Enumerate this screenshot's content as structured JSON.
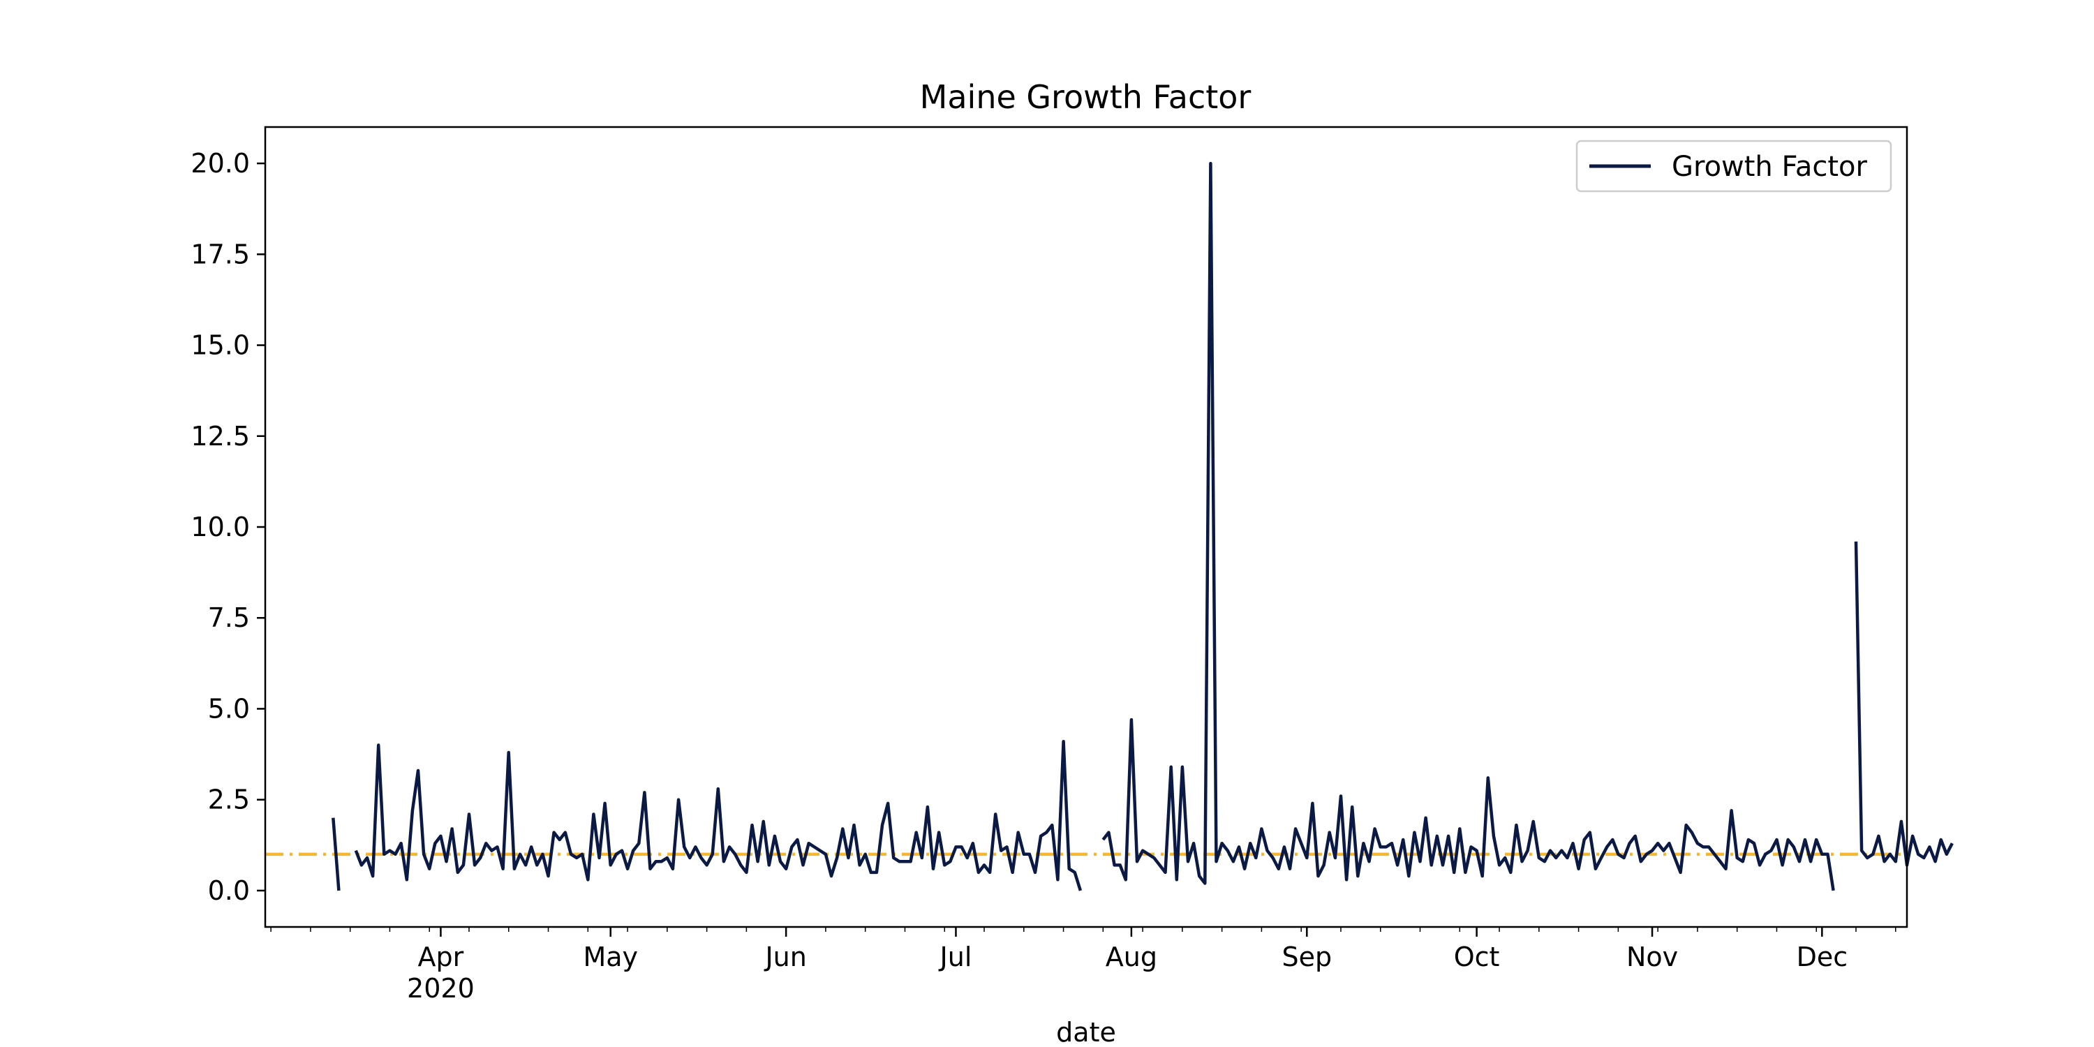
{
  "chart_data": {
    "type": "line",
    "title": "Maine Growth Factor",
    "xlabel": "date",
    "ylabel": "",
    "x_start": "2020-03-13",
    "x_range": [
      "2020-03-01",
      "2020-12-16"
    ],
    "ylim": [
      -1.0,
      21.0
    ],
    "y_ticks": [
      0.0,
      2.5,
      5.0,
      7.5,
      10.0,
      12.5,
      15.0,
      17.5,
      20.0
    ],
    "y_tick_labels": [
      "0.0",
      "2.5",
      "5.0",
      "7.5",
      "10.0",
      "12.5",
      "15.0",
      "17.5",
      "20.0"
    ],
    "x_ticks": [
      {
        "date": "2020-04-01",
        "label": "Apr",
        "sublabel": "2020"
      },
      {
        "date": "2020-05-01",
        "label": "May",
        "sublabel": ""
      },
      {
        "date": "2020-06-01",
        "label": "Jun",
        "sublabel": ""
      },
      {
        "date": "2020-07-01",
        "label": "Jul",
        "sublabel": ""
      },
      {
        "date": "2020-08-01",
        "label": "Aug",
        "sublabel": ""
      },
      {
        "date": "2020-09-01",
        "label": "Sep",
        "sublabel": ""
      },
      {
        "date": "2020-10-01",
        "label": "Oct",
        "sublabel": ""
      },
      {
        "date": "2020-11-01",
        "label": "Nov",
        "sublabel": ""
      },
      {
        "date": "2020-12-01",
        "label": "Dec",
        "sublabel": ""
      }
    ],
    "grid": false,
    "legend_position": "top-right",
    "reference_line": {
      "y": 1.0,
      "color": "#f5b731",
      "style": "dash-dot"
    },
    "series": [
      {
        "name": "Growth Factor",
        "color": "#0b1a45",
        "values": [
          2.0,
          0.0,
          null,
          null,
          1.1,
          0.7,
          0.9,
          0.4,
          4.0,
          1.0,
          1.1,
          1.0,
          1.3,
          0.3,
          2.2,
          3.3,
          1.0,
          0.6,
          1.3,
          1.5,
          0.8,
          1.7,
          0.5,
          0.7,
          2.1,
          0.7,
          0.9,
          1.3,
          1.1,
          1.2,
          0.6,
          3.8,
          0.6,
          1.0,
          0.7,
          1.2,
          0.7,
          1.0,
          0.4,
          1.6,
          1.4,
          1.6,
          1.0,
          0.9,
          1.0,
          0.3,
          2.1,
          0.9,
          2.4,
          0.7,
          1.0,
          1.1,
          0.6,
          1.1,
          1.3,
          2.7,
          0.6,
          0.8,
          0.8,
          0.9,
          0.6,
          2.5,
          1.2,
          0.9,
          1.2,
          0.9,
          0.7,
          1.0,
          2.8,
          0.8,
          1.2,
          1.0,
          0.7,
          0.5,
          1.8,
          0.8,
          1.9,
          0.7,
          1.5,
          0.8,
          0.6,
          1.2,
          1.4,
          0.7,
          1.3,
          1.2,
          1.1,
          1.0,
          0.4,
          0.9,
          1.7,
          0.9,
          1.8,
          0.7,
          1.0,
          0.5,
          0.5,
          1.8,
          2.4,
          0.9,
          0.8,
          0.8,
          0.8,
          1.6,
          0.9,
          2.3,
          0.6,
          1.6,
          0.7,
          0.8,
          1.2,
          1.2,
          0.9,
          1.3,
          0.5,
          0.7,
          0.5,
          2.1,
          1.1,
          1.2,
          0.5,
          1.6,
          1.0,
          1.0,
          0.5,
          1.5,
          1.6,
          1.8,
          0.3,
          4.1,
          0.6,
          0.5,
          0.0,
          null,
          null,
          null,
          1.4,
          1.6,
          0.7,
          0.7,
          0.3,
          4.7,
          0.8,
          1.1,
          1.0,
          0.9,
          0.7,
          0.5,
          3.4,
          0.3,
          3.4,
          0.8,
          1.3,
          0.4,
          0.2,
          20.0,
          0.8,
          1.3,
          1.1,
          0.8,
          1.2,
          0.6,
          1.3,
          0.9,
          1.7,
          1.1,
          0.9,
          0.6,
          1.2,
          0.6,
          1.7,
          1.3,
          0.9,
          2.4,
          0.4,
          0.7,
          1.6,
          0.9,
          2.6,
          0.3,
          2.3,
          0.4,
          1.3,
          0.8,
          1.7,
          1.2,
          1.2,
          1.3,
          0.7,
          1.4,
          0.4,
          1.6,
          0.8,
          2.0,
          0.7,
          1.5,
          0.7,
          1.5,
          0.5,
          1.7,
          0.5,
          1.2,
          1.1,
          0.4,
          3.1,
          1.5,
          0.7,
          0.9,
          0.5,
          1.8,
          0.8,
          1.1,
          1.9,
          0.9,
          0.8,
          1.1,
          0.9,
          1.1,
          0.9,
          1.3,
          0.6,
          1.4,
          1.6,
          0.6,
          0.9,
          1.2,
          1.4,
          1.0,
          0.9,
          1.3,
          1.5,
          0.8,
          1.0,
          1.1,
          1.3,
          1.1,
          1.3,
          0.9,
          0.5,
          1.8,
          1.6,
          1.3,
          1.2,
          1.2,
          1.0,
          0.8,
          0.6,
          2.2,
          0.9,
          0.8,
          1.4,
          1.3,
          0.7,
          1.0,
          1.1,
          1.4,
          0.7,
          1.4,
          1.2,
          0.8,
          1.4,
          0.8,
          1.4,
          1.0,
          1.0,
          0.0,
          null,
          null,
          null,
          9.6,
          1.1,
          0.9,
          1.0,
          1.5,
          0.8,
          1.0,
          0.8,
          1.9,
          0.7,
          1.5,
          1.0,
          0.9,
          1.2,
          0.8,
          1.4,
          1.0,
          1.3
        ]
      }
    ]
  }
}
